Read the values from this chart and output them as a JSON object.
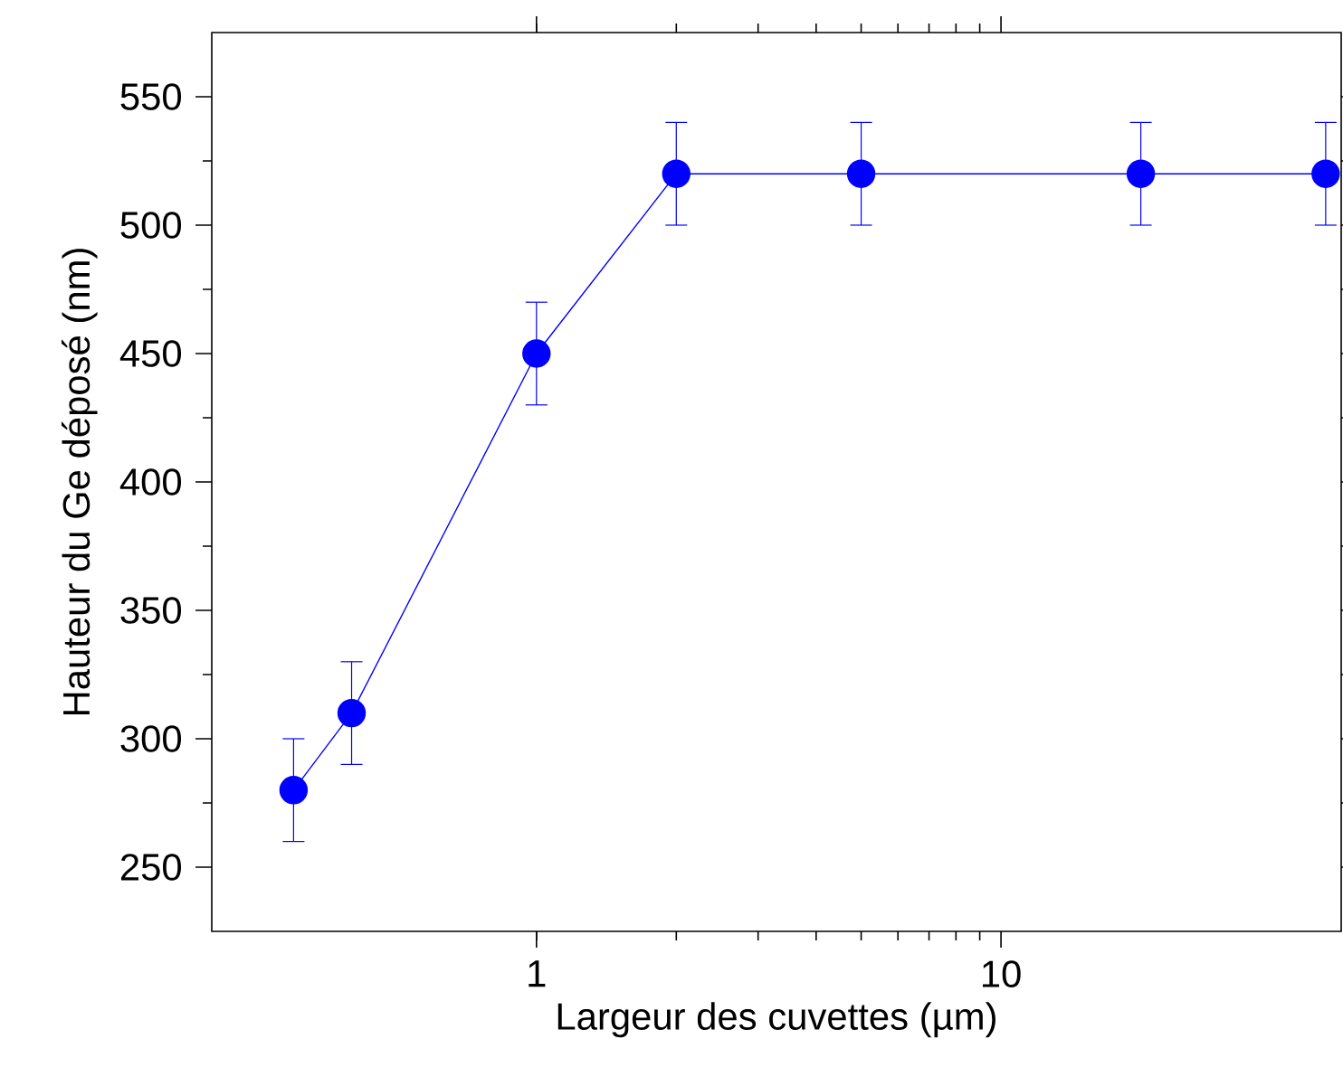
{
  "chart_data": {
    "type": "line",
    "xlabel": "Largeur des cuvettes (µm)",
    "ylabel": "Hauteur du Ge déposé (nm)",
    "x": [
      0.3,
      0.4,
      1,
      2,
      5,
      20,
      50
    ],
    "series": [
      {
        "color": "#0000ff",
        "values": [
          280,
          310,
          450,
          520,
          520,
          520,
          520
        ],
        "errors": [
          20,
          20,
          20,
          20,
          20,
          20,
          20
        ]
      }
    ],
    "log": "x",
    "xlim": [
      0.2,
      54
    ],
    "xticks": [
      1,
      10
    ],
    "ylim": [
      225,
      575
    ],
    "yticks": [
      250,
      300,
      350,
      400,
      450,
      500,
      550
    ],
    "marker": "circle",
    "line_style": "solid"
  }
}
